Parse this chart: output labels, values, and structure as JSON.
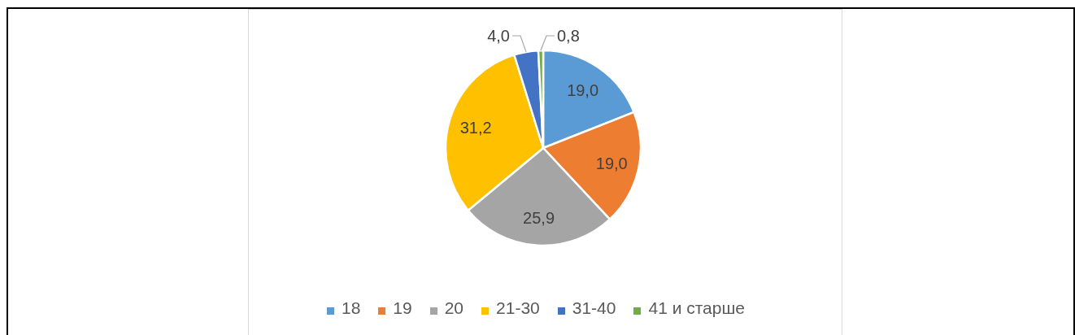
{
  "chart_data": {
    "type": "pie",
    "categories": [
      "18",
      "19",
      "20",
      "21-30",
      "31-40",
      "41 и старше"
    ],
    "values": [
      19.0,
      19.0,
      25.9,
      31.2,
      4.0,
      0.8
    ],
    "value_labels": [
      "19,0",
      "19,0",
      "25,9",
      "31,2",
      "4,0",
      "0,8"
    ],
    "colors": [
      "#5b9bd5",
      "#ed7d31",
      "#a5a5a5",
      "#ffc000",
      "#4472c4",
      "#70ad47"
    ],
    "legend": "bottom"
  }
}
